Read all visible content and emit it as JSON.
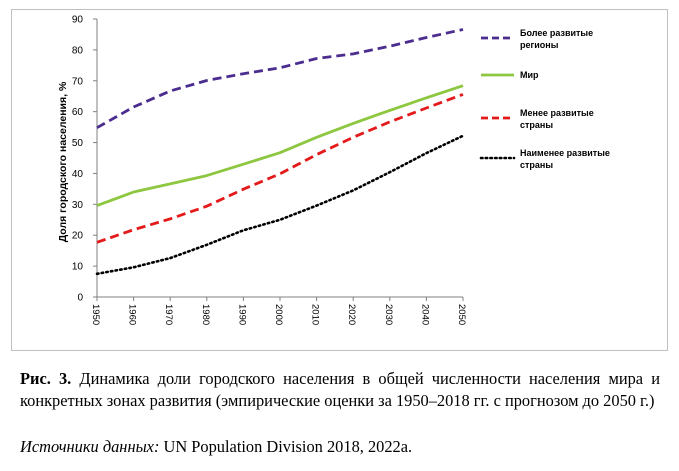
{
  "chart_data": {
    "type": "line",
    "title": "",
    "xlabel": "",
    "ylabel": "Доля городского населения, %",
    "ylim": [
      0,
      90
    ],
    "yticks": [
      "0",
      "10",
      "20",
      "30",
      "40",
      "50",
      "60",
      "70",
      "80",
      "90"
    ],
    "x": [
      "1950",
      "1960",
      "1970",
      "1980",
      "1990",
      "2000",
      "2010",
      "2020",
      "2030",
      "2040",
      "2050"
    ],
    "grid": false,
    "legend_position": "right",
    "series": [
      {
        "name": "Более развитые регионы",
        "legend_lines": [
          "Более развитые",
          "регионы"
        ],
        "color": "#4b2c8f",
        "style": "dashed",
        "values": [
          54.8,
          61.5,
          66.7,
          70.1,
          72.3,
          74.2,
          77.2,
          78.7,
          81.2,
          84.0,
          86.6
        ]
      },
      {
        "name": "Мир",
        "legend_lines": [
          "Мир"
        ],
        "color": "#8dc63f",
        "style": "solid",
        "values": [
          29.6,
          34.0,
          36.6,
          39.3,
          43.0,
          46.7,
          51.7,
          56.2,
          60.4,
          64.5,
          68.4
        ]
      },
      {
        "name": "Менее развитые страны",
        "legend_lines": [
          "Менее развитые",
          "страны"
        ],
        "color": "#e41a1a",
        "style": "dashed",
        "values": [
          17.7,
          21.8,
          25.3,
          29.4,
          34.9,
          39.9,
          46.1,
          51.7,
          56.7,
          61.2,
          65.6
        ]
      },
      {
        "name": "Наименее развитые страны",
        "legend_lines": [
          "Наименее развитые",
          "страны"
        ],
        "color": "#000000",
        "style": "dotted",
        "values": [
          7.5,
          9.6,
          12.6,
          16.9,
          21.6,
          25.0,
          29.6,
          34.5,
          40.4,
          46.6,
          52.2
        ]
      }
    ]
  },
  "caption": {
    "label": "Рис. 3.",
    "text": " Динамика доли городского населения в общей численности населения мира и конкретных зонах развития (эмпирические оценки за 1950–2018 гг. с прогнозом до 2050 г.)"
  },
  "source": {
    "label": "Источники данных:",
    "text": " UN Population Division 2018, 2022a."
  }
}
